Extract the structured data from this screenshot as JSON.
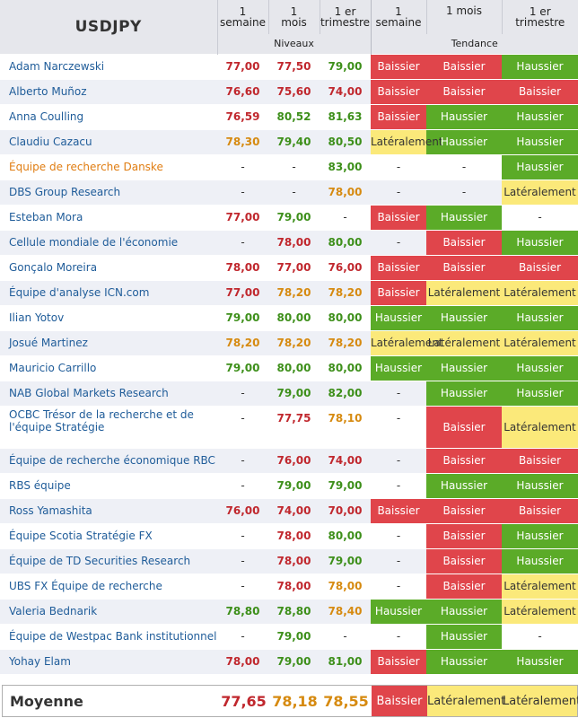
{
  "header": {
    "ticker": "USDJPY",
    "col_1s": [
      "1",
      "semaine"
    ],
    "col_1m": [
      "1",
      "mois"
    ],
    "col_1t": [
      "1 er",
      "trimestre"
    ],
    "tr_1s": [
      "1",
      "semaine"
    ],
    "tr_1m": [
      "1 mois"
    ],
    "tr_1t": [
      "1 er",
      "trimestre"
    ],
    "group_levels": "Niveaux",
    "group_trend": "Tendance"
  },
  "colors": {
    "bearish": "#e0454b",
    "bullish": "#5bab28",
    "sideways": "#fbe97a",
    "name_link": "#1f5c99",
    "name_highlight": "#e07d12"
  },
  "rows": [
    {
      "name": "Adam Narczewski",
      "l1": "77,00",
      "c1": "red",
      "l2": "77,50",
      "c2": "red",
      "l3": "79,00",
      "c3": "green",
      "t1": "Baissier",
      "k1": "bais",
      "t2": "Baissier",
      "k2": "bais",
      "t3": "Haussier",
      "k3": "haus"
    },
    {
      "name": "Alberto Muñoz",
      "l1": "76,60",
      "c1": "red",
      "l2": "75,60",
      "c2": "red",
      "l3": "74,00",
      "c3": "red",
      "t1": "Baissier",
      "k1": "bais",
      "t2": "Baissier",
      "k2": "bais",
      "t3": "Baissier",
      "k3": "bais"
    },
    {
      "name": "Anna Coulling",
      "l1": "76,59",
      "c1": "red",
      "l2": "80,52",
      "c2": "green",
      "l3": "81,63",
      "c3": "green",
      "t1": "Baissier",
      "k1": "bais",
      "t2": "Haussier",
      "k2": "haus",
      "t3": "Haussier",
      "k3": "haus"
    },
    {
      "name": "Claudiu Cazacu",
      "l1": "78,30",
      "c1": "orange",
      "l2": "79,40",
      "c2": "green",
      "l3": "80,50",
      "c3": "green",
      "t1": "Latéralement",
      "k1": "lat",
      "t2": "Haussier",
      "k2": "haus",
      "t3": "Haussier",
      "k3": "haus"
    },
    {
      "name": "Équipe de recherche Danske",
      "highlight": true,
      "l1": "-",
      "c1": "dash",
      "l2": "-",
      "c2": "dash",
      "l3": "83,00",
      "c3": "green",
      "t1": "-",
      "k1": "none",
      "t2": "-",
      "k2": "none",
      "t3": "Haussier",
      "k3": "haus"
    },
    {
      "name": "DBS Group Research",
      "l1": "-",
      "c1": "dash",
      "l2": "-",
      "c2": "dash",
      "l3": "78,00",
      "c3": "orange",
      "t1": "-",
      "k1": "none",
      "t2": "-",
      "k2": "none",
      "t3": "Latéralement",
      "k3": "lat"
    },
    {
      "name": "Esteban Mora",
      "l1": "77,00",
      "c1": "red",
      "l2": "79,00",
      "c2": "green",
      "l3": "-",
      "c3": "dash",
      "t1": "Baissier",
      "k1": "bais",
      "t2": "Haussier",
      "k2": "haus",
      "t3": "-",
      "k3": "none"
    },
    {
      "name": "Cellule mondiale de l'économie",
      "l1": "-",
      "c1": "dash",
      "l2": "78,00",
      "c2": "red",
      "l3": "80,00",
      "c3": "green",
      "t1": "-",
      "k1": "none",
      "t2": "Baissier",
      "k2": "bais",
      "t3": "Haussier",
      "k3": "haus"
    },
    {
      "name": "Gonçalo Moreira",
      "l1": "78,00",
      "c1": "red",
      "l2": "77,00",
      "c2": "red",
      "l3": "76,00",
      "c3": "red",
      "t1": "Baissier",
      "k1": "bais",
      "t2": "Baissier",
      "k2": "bais",
      "t3": "Baissier",
      "k3": "bais"
    },
    {
      "name": "Équipe d'analyse ICN.com",
      "l1": "77,00",
      "c1": "red",
      "l2": "78,20",
      "c2": "orange",
      "l3": "78,20",
      "c3": "orange",
      "t1": "Baissier",
      "k1": "bais",
      "t2": "Latéralement",
      "k2": "lat",
      "t3": "Latéralement",
      "k3": "lat"
    },
    {
      "name": "Ilian Yotov",
      "l1": "79,00",
      "c1": "green",
      "l2": "80,00",
      "c2": "green",
      "l3": "80,00",
      "c3": "green",
      "t1": "Haussier",
      "k1": "haus",
      "t2": "Haussier",
      "k2": "haus",
      "t3": "Haussier",
      "k3": "haus"
    },
    {
      "name": "Josué Martinez",
      "l1": "78,20",
      "c1": "orange",
      "l2": "78,20",
      "c2": "orange",
      "l3": "78,20",
      "c3": "orange",
      "t1": "Latéralement",
      "k1": "lat",
      "t2": "Latéralement",
      "k2": "lat",
      "t3": "Latéralement",
      "k3": "lat"
    },
    {
      "name": "Mauricio Carrillo",
      "l1": "79,00",
      "c1": "green",
      "l2": "80,00",
      "c2": "green",
      "l3": "80,00",
      "c3": "green",
      "t1": "Haussier",
      "k1": "haus",
      "t2": "Haussier",
      "k2": "haus",
      "t3": "Haussier",
      "k3": "haus"
    },
    {
      "name": "NAB Global Markets Research",
      "l1": "-",
      "c1": "dash",
      "l2": "79,00",
      "c2": "green",
      "l3": "82,00",
      "c3": "green",
      "t1": "-",
      "k1": "none",
      "t2": "Haussier",
      "k2": "haus",
      "t3": "Haussier",
      "k3": "haus"
    },
    {
      "name": "OCBC Trésor de la recherche et de l'équipe Stratégie",
      "tall": true,
      "l1": "-",
      "c1": "dash",
      "l2": "77,75",
      "c2": "red",
      "l3": "78,10",
      "c3": "orange",
      "t1": "-",
      "k1": "none",
      "t2": "Baissier",
      "k2": "bais",
      "t3": "Latéralement",
      "k3": "lat"
    },
    {
      "name": "Équipe de recherche économique RBC",
      "l1": "-",
      "c1": "dash",
      "l2": "76,00",
      "c2": "red",
      "l3": "74,00",
      "c3": "red",
      "t1": "-",
      "k1": "none",
      "t2": "Baissier",
      "k2": "bais",
      "t3": "Baissier",
      "k3": "bais"
    },
    {
      "name": "RBS équipe",
      "l1": "-",
      "c1": "dash",
      "l2": "79,00",
      "c2": "green",
      "l3": "79,00",
      "c3": "green",
      "t1": "-",
      "k1": "none",
      "t2": "Haussier",
      "k2": "haus",
      "t3": "Haussier",
      "k3": "haus"
    },
    {
      "name": "Ross Yamashita",
      "l1": "76,00",
      "c1": "red",
      "l2": "74,00",
      "c2": "red",
      "l3": "70,00",
      "c3": "red",
      "t1": "Baissier",
      "k1": "bais",
      "t2": "Baissier",
      "k2": "bais",
      "t3": "Baissier",
      "k3": "bais"
    },
    {
      "name": "Équipe Scotia Stratégie FX",
      "l1": "-",
      "c1": "dash",
      "l2": "78,00",
      "c2": "red",
      "l3": "80,00",
      "c3": "green",
      "t1": "-",
      "k1": "none",
      "t2": "Baissier",
      "k2": "bais",
      "t3": "Haussier",
      "k3": "haus"
    },
    {
      "name": "Équipe de TD Securities Research",
      "l1": "-",
      "c1": "dash",
      "l2": "78,00",
      "c2": "red",
      "l3": "79,00",
      "c3": "green",
      "t1": "-",
      "k1": "none",
      "t2": "Baissier",
      "k2": "bais",
      "t3": "Haussier",
      "k3": "haus"
    },
    {
      "name": "UBS FX Équipe de recherche",
      "l1": "-",
      "c1": "dash",
      "l2": "78,00",
      "c2": "red",
      "l3": "78,00",
      "c3": "orange",
      "t1": "-",
      "k1": "none",
      "t2": "Baissier",
      "k2": "bais",
      "t3": "Latéralement",
      "k3": "lat"
    },
    {
      "name": "Valeria Bednarik",
      "l1": "78,80",
      "c1": "green",
      "l2": "78,80",
      "c2": "green",
      "l3": "78,40",
      "c3": "orange",
      "t1": "Haussier",
      "k1": "haus",
      "t2": "Haussier",
      "k2": "haus",
      "t3": "Latéralement",
      "k3": "lat"
    },
    {
      "name": "Équipe de Westpac Bank institutionnel",
      "l1": "-",
      "c1": "dash",
      "l2": "79,00",
      "c2": "green",
      "l3": "-",
      "c3": "dash",
      "t1": "-",
      "k1": "none",
      "t2": "Haussier",
      "k2": "haus",
      "t3": "-",
      "k3": "none"
    },
    {
      "name": "Yohay Elam",
      "l1": "78,00",
      "c1": "red",
      "l2": "79,00",
      "c2": "green",
      "l3": "81,00",
      "c3": "green",
      "t1": "Baissier",
      "k1": "bais",
      "t2": "Haussier",
      "k2": "haus",
      "t3": "Haussier",
      "k3": "haus"
    }
  ],
  "average": {
    "label": "Moyenne",
    "l1": "77,65",
    "c1": "red",
    "l2": "78,18",
    "c2": "orange",
    "l3": "78,55",
    "c3": "orange",
    "t1": "Baissier",
    "k1": "bais",
    "t2": "Latéralement",
    "k2": "lat",
    "t3": "Latéralement",
    "k3": "lat"
  }
}
